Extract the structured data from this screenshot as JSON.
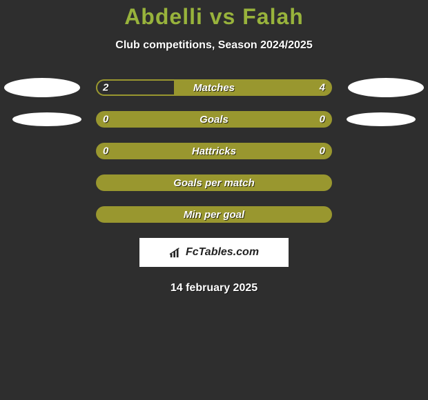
{
  "title": "Abdelli vs Falah",
  "subtitle": "Club competitions, Season 2024/2025",
  "title_color": "#98b33c",
  "background_color": "#2e2e2e",
  "bar_fill_color": "#99972f",
  "bar_empty_color": "#2e2e2e",
  "text_color": "#ffffff",
  "ellipse_color": "#ffffff",
  "logo_bg": "#ffffff",
  "logo_text_color": "#222222",
  "rows": [
    {
      "label": "Matches",
      "left": "2",
      "right": "4",
      "left_pct": 33,
      "show_ellipse": true,
      "ellipse_size": "big"
    },
    {
      "label": "Goals",
      "left": "0",
      "right": "0",
      "left_pct": 0,
      "show_ellipse": true,
      "ellipse_size": "small"
    },
    {
      "label": "Hattricks",
      "left": "0",
      "right": "0",
      "left_pct": 0,
      "show_ellipse": false
    },
    {
      "label": "Goals per match",
      "left": "",
      "right": "",
      "left_pct": 0,
      "show_ellipse": false
    },
    {
      "label": "Min per goal",
      "left": "",
      "right": "",
      "left_pct": 0,
      "show_ellipse": false
    }
  ],
  "logo_text": "FcTables.com",
  "date": "14 february 2025"
}
